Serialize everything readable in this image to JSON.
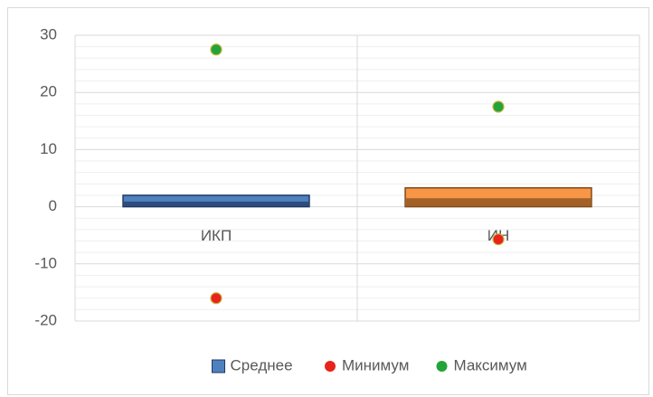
{
  "chart_data": {
    "type": "bar",
    "categories": [
      "ИКП",
      "ИН"
    ],
    "series": [
      {
        "name": "Среднее",
        "type": "bar",
        "color": "#4f81bd",
        "colors": [
          "#4f81bd",
          "#f79646"
        ],
        "edge_colors": [
          "#1f3864",
          "#7f4a1a"
        ],
        "values": [
          2,
          3.3
        ]
      },
      {
        "name": "Минимум",
        "type": "scatter",
        "color": "#e8231c",
        "values": [
          -16,
          -5.7
        ]
      },
      {
        "name": "Максимум",
        "type": "scatter",
        "color": "#22a43a",
        "values": [
          27.5,
          17.5
        ]
      }
    ],
    "ylim": [
      -20,
      30
    ],
    "yticks": [
      -20,
      -10,
      0,
      10,
      20,
      30
    ],
    "yminorticks": [
      -18,
      -16,
      -14,
      -12,
      -8,
      -6,
      -4,
      -2,
      2,
      4,
      6,
      8,
      12,
      14,
      16,
      18,
      22,
      24,
      26,
      28
    ],
    "grid": true,
    "legend": "bottom"
  }
}
